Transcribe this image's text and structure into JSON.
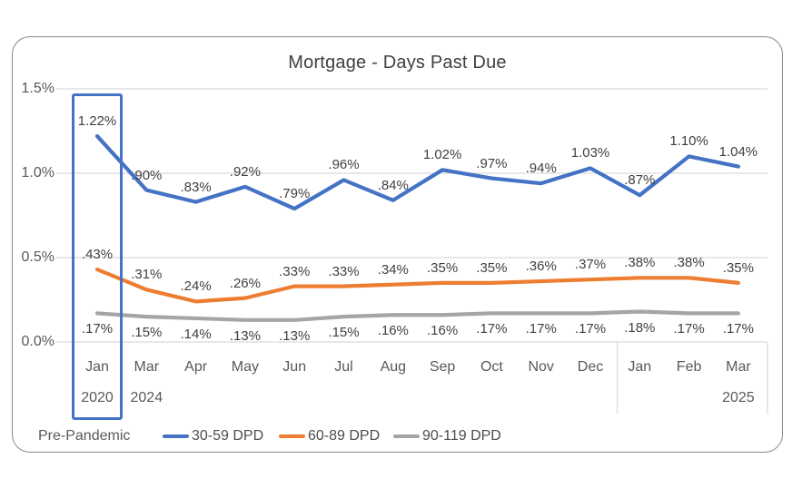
{
  "title": "Mortgage - Days Past Due",
  "pre_pandemic_label": "Pre-Pandemic",
  "colors": {
    "series_blue": "#4472C4",
    "series_orange": "#ED7D31",
    "series_gray": "#A5A5A5",
    "highlight_border": "#4472C4",
    "gridline": "#D9D9D9",
    "title_text": "#404040",
    "axis_text": "#595959",
    "frame_border": "#898989"
  },
  "chart_data": {
    "type": "line",
    "title": "Mortgage - Days Past Due",
    "categories": [
      "Jan",
      "Mar",
      "Apr",
      "May",
      "Jun",
      "Jul",
      "Aug",
      "Sep",
      "Oct",
      "Nov",
      "Dec",
      "Jan",
      "Feb",
      "Mar"
    ],
    "year_rows": [
      {
        "index": 0,
        "text": "2020"
      },
      {
        "index": 1,
        "text": "2024"
      },
      {
        "index": 13,
        "text": "2025"
      }
    ],
    "y_ticks": [
      {
        "value": 1.5,
        "label": "1.5%"
      },
      {
        "value": 1.0,
        "label": "1.0%"
      },
      {
        "value": 0.5,
        "label": "0.5%"
      },
      {
        "value": 0.0,
        "label": "0.0%"
      }
    ],
    "ylim": [
      0,
      1.5
    ],
    "grid": "horizontal",
    "legend_position": "bottom",
    "highlighted_category": "Jan 2020",
    "series": [
      {
        "name": "30-59 DPD",
        "color": "#4472C4",
        "label_position": "above",
        "values": [
          1.22,
          0.9,
          0.83,
          0.92,
          0.79,
          0.96,
          0.84,
          1.02,
          0.97,
          0.94,
          1.03,
          0.87,
          1.1,
          1.04
        ],
        "labels": [
          "1.22%",
          ".90%",
          ".83%",
          ".92%",
          ".79%",
          ".96%",
          ".84%",
          "1.02%",
          ".97%",
          ".94%",
          "1.03%",
          ".87%",
          "1.10%",
          "1.04%"
        ]
      },
      {
        "name": "60-89 DPD",
        "color": "#ED7D31",
        "label_position": "above",
        "values": [
          0.43,
          0.31,
          0.24,
          0.26,
          0.33,
          0.33,
          0.34,
          0.35,
          0.35,
          0.36,
          0.37,
          0.38,
          0.38,
          0.35
        ],
        "labels": [
          ".43%",
          ".31%",
          ".24%",
          ".26%",
          ".33%",
          ".33%",
          ".34%",
          ".35%",
          ".35%",
          ".36%",
          ".37%",
          ".38%",
          ".38%",
          ".35%"
        ]
      },
      {
        "name": "90-119 DPD",
        "color": "#A5A5A5",
        "label_position": "below",
        "values": [
          0.17,
          0.15,
          0.14,
          0.13,
          0.13,
          0.15,
          0.16,
          0.16,
          0.17,
          0.17,
          0.17,
          0.18,
          0.17,
          0.17
        ],
        "labels": [
          ".17%",
          ".15%",
          ".14%",
          ".13%",
          ".13%",
          ".15%",
          ".16%",
          ".16%",
          ".17%",
          ".17%",
          ".17%",
          ".18%",
          ".17%",
          ".17%"
        ]
      }
    ]
  }
}
